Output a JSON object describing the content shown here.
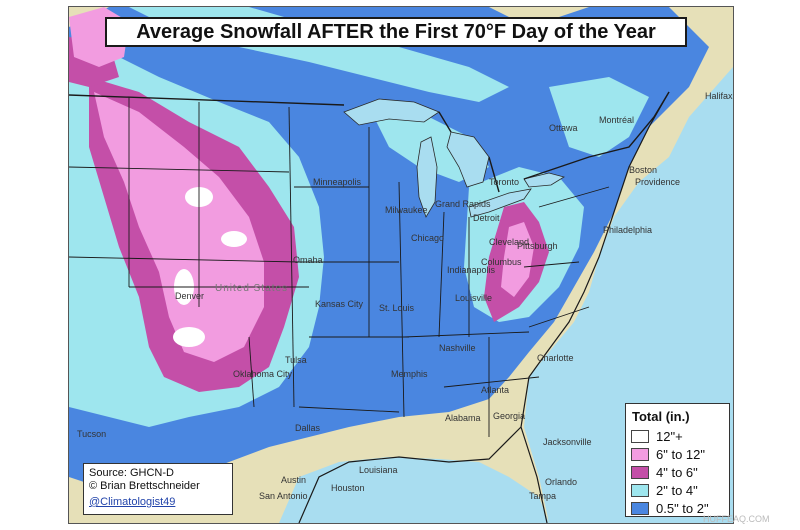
{
  "title": "Average Snowfall AFTER the First 70°F Day of the Year",
  "legend": {
    "title": "Total (in.)",
    "items": [
      {
        "label": "12\"+",
        "color": "#ffffff"
      },
      {
        "label": "6\" to 12\"",
        "color": "#f29ce0"
      },
      {
        "label": "4\" to 6\"",
        "color": "#c44fa8"
      },
      {
        "label": "2\" to 4\"",
        "color": "#9ee6ee"
      },
      {
        "label": "0.5\" to 2\"",
        "color": "#4a86e0"
      }
    ]
  },
  "source": {
    "line1": "Source: GHCN-D",
    "line2": "© Brian Brettschneider",
    "handle": "@Climatologist49"
  },
  "colors": {
    "land_no_snow": "#e6e0b8",
    "water": "#a9ddf0",
    "boundaries": "#222222"
  },
  "cities": [
    {
      "name": "Ottawa"
    },
    {
      "name": "Montréal"
    },
    {
      "name": "Halifax"
    },
    {
      "name": "Toronto"
    },
    {
      "name": "Boston"
    },
    {
      "name": "Providence"
    },
    {
      "name": "Philadelphia"
    },
    {
      "name": "Pittsburgh"
    },
    {
      "name": "Minneapolis"
    },
    {
      "name": "Milwaukee"
    },
    {
      "name": "Grand Rapids"
    },
    {
      "name": "Chicago"
    },
    {
      "name": "Detroit"
    },
    {
      "name": "Cleveland"
    },
    {
      "name": "Columbus"
    },
    {
      "name": "Indianapolis"
    },
    {
      "name": "Omaha"
    },
    {
      "name": "Denver"
    },
    {
      "name": "Kansas City"
    },
    {
      "name": "St. Louis"
    },
    {
      "name": "Louisville"
    },
    {
      "name": "Nashville"
    },
    {
      "name": "Memphis"
    },
    {
      "name": "Charlotte"
    },
    {
      "name": "Atlanta"
    },
    {
      "name": "Oklahoma City"
    },
    {
      "name": "Tulsa"
    },
    {
      "name": "Dallas"
    },
    {
      "name": "Austin"
    },
    {
      "name": "San Antonio"
    },
    {
      "name": "Houston"
    },
    {
      "name": "Tucson"
    },
    {
      "name": "Jacksonville"
    },
    {
      "name": "Orlando"
    },
    {
      "name": "Tampa"
    },
    {
      "name": "Alabama"
    },
    {
      "name": "Georgia"
    },
    {
      "name": "Louisiana"
    },
    {
      "name": "United States"
    }
  ],
  "watermark": "HUFFEAQ.COM"
}
